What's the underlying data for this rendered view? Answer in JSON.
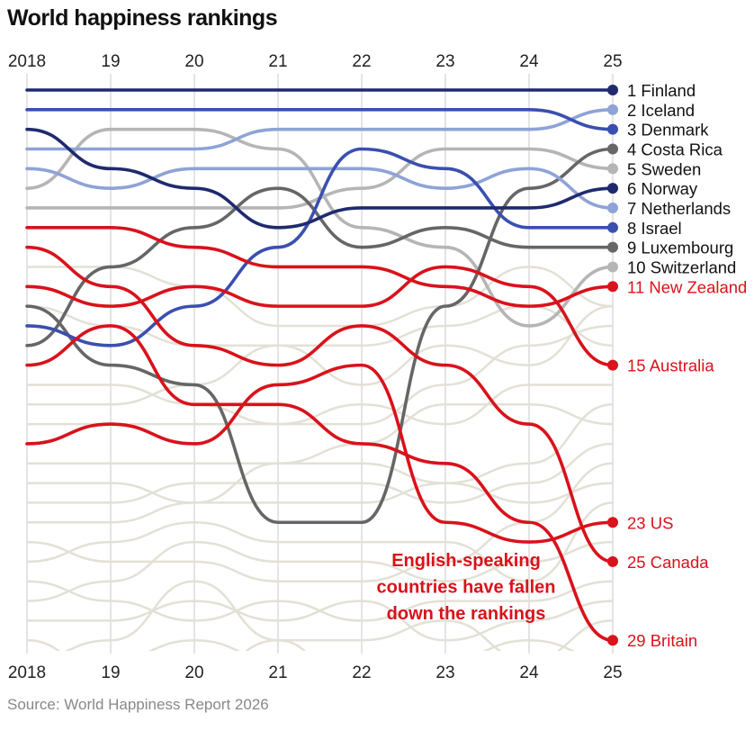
{
  "chart_data": {
    "type": "line",
    "subtype": "bump",
    "title": "World happiness rankings",
    "source": "Source: World Happiness Report 2026",
    "x": [
      2018,
      2019,
      2020,
      2021,
      2022,
      2023,
      2024,
      2025
    ],
    "tick_labels": [
      "2018",
      "19",
      "20",
      "21",
      "22",
      "23",
      "24",
      "25"
    ],
    "y_axis": "rank (1 at top)",
    "ylim": [
      1,
      29
    ],
    "annotation": [
      "English-speaking",
      "countries have fallen",
      "down the rankings"
    ],
    "colors": {
      "navy": "#1f2a6e",
      "blue": "#3a4fb0",
      "lightblue": "#8ea3d6",
      "darkgrey": "#666666",
      "lightgrey": "#b5b5b5",
      "red": "#d9121b",
      "background": "#e3e0d6"
    },
    "series": [
      {
        "name": "Finland",
        "label": "1 Finland",
        "color": "navy",
        "ranks": [
          1,
          1,
          1,
          1,
          1,
          1,
          1,
          1
        ]
      },
      {
        "name": "Iceland",
        "label": "2 Iceland",
        "color": "lightblue",
        "ranks": [
          4,
          4,
          4,
          3,
          3,
          3,
          3,
          2
        ]
      },
      {
        "name": "Denmark",
        "label": "3 Denmark",
        "color": "blue",
        "ranks": [
          2,
          2,
          2,
          2,
          2,
          2,
          2,
          3
        ]
      },
      {
        "name": "Costa Rica",
        "label": "4 Costa Rica",
        "color": "darkgrey",
        "ranks": [
          12,
          15,
          16,
          23,
          23,
          12,
          6,
          4
        ]
      },
      {
        "name": "Sweden",
        "label": "5 Sweden",
        "color": "lightgrey",
        "ranks": [
          7,
          7,
          7,
          7,
          6,
          4,
          4,
          5
        ]
      },
      {
        "name": "Norway",
        "label": "6 Norway",
        "color": "navy",
        "ranks": [
          3,
          5,
          6,
          8,
          7,
          7,
          7,
          6
        ]
      },
      {
        "name": "Netherlands",
        "label": "7 Netherlands",
        "color": "lightblue",
        "ranks": [
          5,
          6,
          5,
          5,
          5,
          6,
          5,
          7
        ]
      },
      {
        "name": "Israel",
        "label": "8 Israel",
        "color": "blue",
        "ranks": [
          13,
          14,
          12,
          9,
          4,
          5,
          8,
          8
        ]
      },
      {
        "name": "Luxembourg",
        "label": "9 Luxembourg",
        "color": "darkgrey",
        "ranks": [
          14,
          10,
          8,
          6,
          9,
          8,
          9,
          9
        ]
      },
      {
        "name": "Switzerland",
        "label": "10 Switzerland",
        "color": "lightgrey",
        "ranks": [
          6,
          3,
          3,
          4,
          8,
          9,
          13,
          10
        ]
      },
      {
        "name": "New Zealand",
        "label": "11 New Zealand",
        "color": "red",
        "ranks": [
          8,
          8,
          9,
          10,
          10,
          11,
          12,
          11
        ]
      },
      {
        "name": "Australia",
        "label": "15 Australia",
        "color": "red",
        "ranks": [
          11,
          12,
          11,
          12,
          12,
          10,
          11,
          15
        ]
      },
      {
        "name": "US",
        "label": "23 US",
        "color": "red",
        "ranks": [
          19,
          18,
          19,
          16,
          15,
          23,
          24,
          23
        ]
      },
      {
        "name": "Canada",
        "label": "25 Canada",
        "color": "red",
        "ranks": [
          9,
          11,
          14,
          15,
          13,
          15,
          18,
          25
        ]
      },
      {
        "name": "Britain",
        "label": "29 Britain",
        "color": "red",
        "ranks": [
          15,
          13,
          17,
          17,
          19,
          20,
          23,
          29
        ]
      }
    ],
    "background_series": [
      [
        10,
        10,
        11,
        13,
        13,
        12,
        10,
        12
      ],
      [
        16,
        16,
        17,
        18,
        18,
        16,
        14,
        13
      ],
      [
        17,
        17,
        16,
        14,
        14,
        13,
        12,
        14
      ],
      [
        18,
        18,
        18,
        18,
        17,
        18,
        16,
        16
      ],
      [
        20,
        20,
        20,
        20,
        19,
        17,
        17,
        18
      ],
      [
        21,
        21,
        22,
        22,
        22,
        21,
        20,
        17
      ],
      [
        23,
        23,
        22,
        20,
        20,
        21,
        22,
        21
      ],
      [
        24,
        25,
        25,
        26,
        26,
        25,
        23,
        20
      ],
      [
        22,
        22,
        21,
        21,
        21,
        22,
        21,
        19
      ],
      [
        25,
        24,
        23,
        24,
        24,
        24,
        26,
        22
      ],
      [
        27,
        26,
        24,
        25,
        25,
        26,
        25,
        24
      ],
      [
        26,
        27,
        28,
        27,
        28,
        27,
        27,
        26
      ],
      [
        28,
        28,
        27,
        28,
        27,
        29,
        28,
        27
      ],
      [
        30,
        29,
        26,
        29,
        29,
        28,
        30,
        28
      ],
      [
        31,
        30,
        29,
        30,
        30,
        30,
        29,
        30
      ],
      [
        29,
        31,
        30,
        31,
        31,
        31,
        31,
        31
      ],
      [
        12,
        13,
        14,
        14,
        16,
        14,
        15,
        12
      ],
      [
        32,
        32,
        31,
        29,
        32,
        32,
        32,
        32
      ]
    ]
  }
}
